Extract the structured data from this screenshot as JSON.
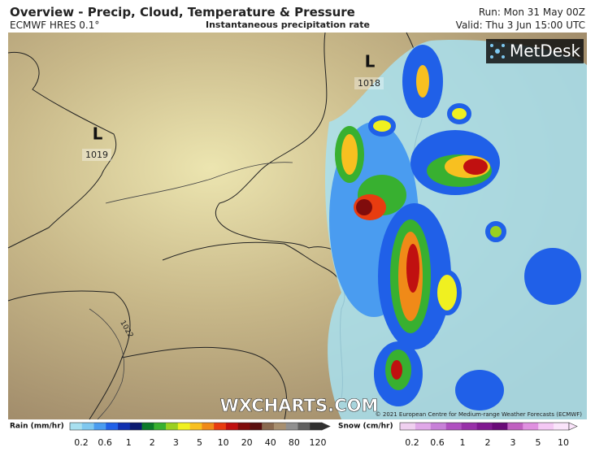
{
  "header": {
    "title": "Overview - Precip, Cloud, Temperature & Pressure",
    "model": "ECMWF HRES 0.1°",
    "product": "Instantaneous precipitation rate",
    "run": "Run: Mon 31 May 00Z",
    "valid": "Valid: Thu 3 Jun 15:00 UTC"
  },
  "map": {
    "pressure_centres": [
      {
        "symbol": "L",
        "value": "1019"
      },
      {
        "symbol": "L",
        "value": "1018"
      }
    ],
    "isobar_label": "1022",
    "watermark": "WXCHARTS.COM",
    "logo": "MetDesk",
    "credit": "© 2021 European Centre for Medium-range Weather Forecasts (ECMWF)"
  },
  "legend": {
    "rain": {
      "title": "Rain (mm/hr)",
      "ticks": [
        "0.2",
        "0.6",
        "1",
        "2",
        "3",
        "5",
        "10",
        "20",
        "40",
        "80",
        "120"
      ],
      "colors": [
        "#a8e0f0",
        "#7fc8f0",
        "#4a9cf0",
        "#2060e8",
        "#1030b0",
        "#0a1a70",
        "#0c7a2a",
        "#38b030",
        "#9ad020",
        "#f0f020",
        "#f8c020",
        "#f08a18",
        "#e83c10",
        "#c01010",
        "#800c0c",
        "#5a1010",
        "#8a6a50",
        "#a89070",
        "#909090",
        "#606060",
        "#303030"
      ]
    },
    "snow": {
      "title": "Snow (cm/hr)",
      "ticks": [
        "0.2",
        "0.6",
        "1",
        "2",
        "3",
        "5",
        "10"
      ],
      "colors": [
        "#f0d0f0",
        "#e0a8e8",
        "#c880d8",
        "#b050c0",
        "#9830a8",
        "#801890",
        "#6a0a78",
        "#c060c0",
        "#e090e0",
        "#f4c8f4",
        "#fae4fa"
      ]
    }
  }
}
